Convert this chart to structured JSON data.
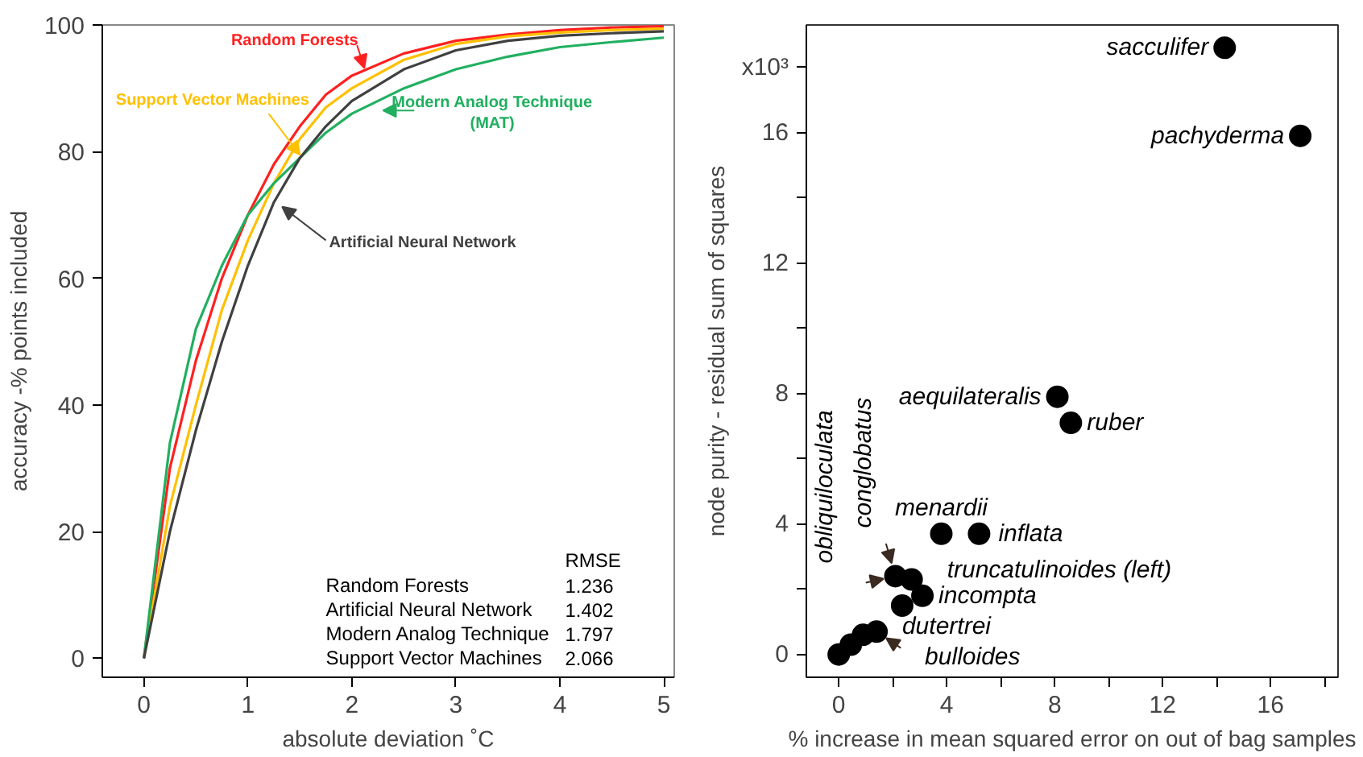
{
  "chart_data": [
    {
      "type": "line",
      "xlabel": "absolute deviation ˚C",
      "ylabel": "accuracy -% points included",
      "x": [
        0,
        0.25,
        0.5,
        0.75,
        1,
        1.25,
        1.5,
        1.75,
        2,
        2.5,
        3,
        3.5,
        4,
        4.5,
        5
      ],
      "series": [
        {
          "name": "Random Forests",
          "color": "#ff2020",
          "values": [
            0,
            30,
            47,
            60,
            70,
            78,
            84,
            89,
            92,
            95.5,
            97.5,
            98.5,
            99.2,
            99.6,
            99.8
          ]
        },
        {
          "name": "Support Vector Machines",
          "color": "#ffc000",
          "values": [
            0,
            24,
            40,
            55,
            66,
            75,
            82,
            87,
            90,
            94.5,
            97,
            98.2,
            98.8,
            99.2,
            99.4
          ]
        },
        {
          "name": "Modern Analog Technique\n(MAT)",
          "color": "#20b060",
          "values": [
            0,
            34,
            52,
            62,
            70,
            75,
            79,
            83,
            86,
            90,
            93,
            95,
            96.5,
            97.3,
            98
          ]
        },
        {
          "name": "Artificial Neural Network",
          "color": "#404040",
          "values": [
            0,
            20,
            36,
            50,
            62,
            72,
            79,
            84,
            88,
            93,
            96,
            97.5,
            98.3,
            98.7,
            99
          ]
        }
      ],
      "xlim": [
        -0.4,
        5.1
      ],
      "ylim": [
        -3,
        100
      ],
      "xticks": [
        0,
        1,
        2,
        3,
        4,
        5
      ],
      "yticks": [
        0,
        20,
        40,
        60,
        80,
        100
      ],
      "grid": false,
      "line_style": "solid",
      "marker": "none",
      "annotations": [
        "RMSE",
        "Random Forests",
        "1.236",
        "Artificial Neural Network",
        "1.402",
        "Modern Analog Technique",
        "1.797",
        "Support Vector Machines",
        "2.066"
      ]
    },
    {
      "type": "scatter",
      "xlabel": "% increase in mean squared error on out of bag samples",
      "ylabel": "node purity - residual sum of squares",
      "x": [
        14.3,
        17.1,
        8.1,
        8.6,
        3.8,
        5.2,
        2.1,
        2.7,
        3.1,
        2.35,
        0,
        0.45,
        0.9,
        1.4
      ],
      "values": [
        18.6,
        15.9,
        7.9,
        7.1,
        3.7,
        3.7,
        2.4,
        2.3,
        1.8,
        1.5,
        0,
        0.3,
        0.6,
        0.7
      ],
      "color": "#000000",
      "marker": "circle",
      "grid": false,
      "xlim": [
        -1.2,
        18.5
      ],
      "ylim": [
        -0.7,
        19.3
      ],
      "xticks": [
        0,
        {
          "value": 2,
          "label": null
        },
        4,
        {
          "value": 6,
          "label": null
        },
        8,
        {
          "value": 10,
          "label": null
        },
        12,
        {
          "value": 14,
          "label": null
        },
        16,
        {
          "value": 18,
          "label": null
        }
      ],
      "yticks": [
        0,
        {
          "value": 2,
          "label": null
        },
        4,
        {
          "value": 6,
          "label": null
        },
        8,
        {
          "value": 10,
          "label": null
        },
        12,
        {
          "value": 14,
          "label": null
        },
        16,
        {
          "value": 18,
          "label": "x10³"
        }
      ],
      "annotations": [
        {
          "text": "sacculifer",
          "x": 14.3,
          "y": 18.6
        },
        {
          "text": "pachyderma",
          "x": 17.1,
          "y": 15.9
        },
        {
          "text": "aequilateralis",
          "x": 8.1,
          "y": 7.9
        },
        {
          "text": "ruber",
          "x": 8.6,
          "y": 7.1
        },
        {
          "text": "menardii",
          "x": 3.8,
          "y": 3.7
        },
        {
          "text": "inflata",
          "x": 5.2,
          "y": 3.7
        },
        {
          "text": "truncatulinoides (left)",
          "x": 2.7,
          "y": 2.3
        },
        {
          "text": "incompta",
          "x": 3.1,
          "y": 1.8
        },
        {
          "text": "dutertrei",
          "x": 2.35,
          "y": 1.5
        },
        {
          "text": "bulloides",
          "x": 1.4,
          "y": 0.7
        },
        {
          "text": "obliquiloculata",
          "x": 2.1,
          "y": 2.4
        },
        {
          "text": "conglobatus",
          "x": 2.1,
          "y": 2.4
        }
      ]
    }
  ]
}
